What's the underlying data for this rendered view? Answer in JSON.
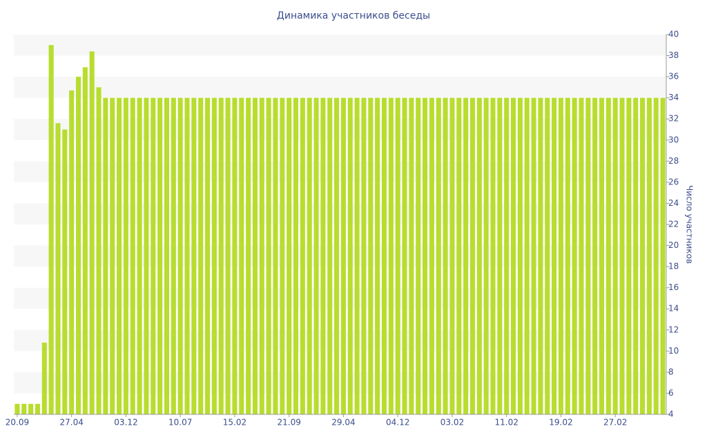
{
  "chart_data": {
    "type": "bar",
    "title": "Динамика участников беседы",
    "y_label": "Число участников",
    "categories": [
      "20.09",
      null,
      null,
      null,
      null,
      null,
      null,
      null,
      "27.04",
      null,
      null,
      null,
      null,
      null,
      null,
      null,
      "03.12",
      null,
      null,
      null,
      null,
      null,
      null,
      null,
      "10.07",
      null,
      null,
      null,
      null,
      null,
      null,
      null,
      "15.02",
      null,
      null,
      null,
      null,
      null,
      null,
      null,
      "21.09",
      null,
      null,
      null,
      null,
      null,
      null,
      null,
      "29.04",
      null,
      null,
      null,
      null,
      null,
      null,
      null,
      "04.12",
      null,
      null,
      null,
      null,
      null,
      null,
      null,
      "03.02",
      null,
      null,
      null,
      null,
      null,
      null,
      null,
      "11.02",
      null,
      null,
      null,
      null,
      null,
      null,
      null,
      "19.02",
      null,
      null,
      null,
      null,
      null,
      null,
      null,
      "27.02",
      null,
      null,
      null,
      null,
      null,
      null,
      null
    ],
    "values": [
      5,
      5,
      5,
      5,
      10.8,
      39,
      31.6,
      31,
      34.7,
      36,
      36.9,
      38.4,
      35,
      34,
      34,
      34,
      34,
      34,
      34,
      34,
      34,
      34,
      34,
      34,
      34,
      34,
      34,
      34,
      34,
      34,
      34,
      34,
      34,
      34,
      34,
      34,
      34,
      34,
      34,
      34,
      34,
      34,
      34,
      34,
      34,
      34,
      34,
      34,
      34,
      34,
      34,
      34,
      34,
      34,
      34,
      34,
      34,
      34,
      34,
      34,
      34,
      34,
      34,
      34,
      34,
      34,
      34,
      34,
      34,
      34,
      34,
      34,
      34,
      34,
      34,
      34,
      34,
      34,
      34,
      34,
      34,
      34,
      34,
      34,
      34,
      34,
      34,
      34,
      34,
      34,
      34,
      34,
      34,
      34,
      34,
      34
    ],
    "color": "#b8dd2f",
    "ylim": [
      4,
      40
    ],
    "yticks": [
      4,
      6,
      8,
      10,
      12,
      14,
      16,
      18,
      20,
      22,
      24,
      26,
      28,
      30,
      32,
      34,
      36,
      38,
      40
    ],
    "y_axis_side": "right",
    "grid": true
  }
}
